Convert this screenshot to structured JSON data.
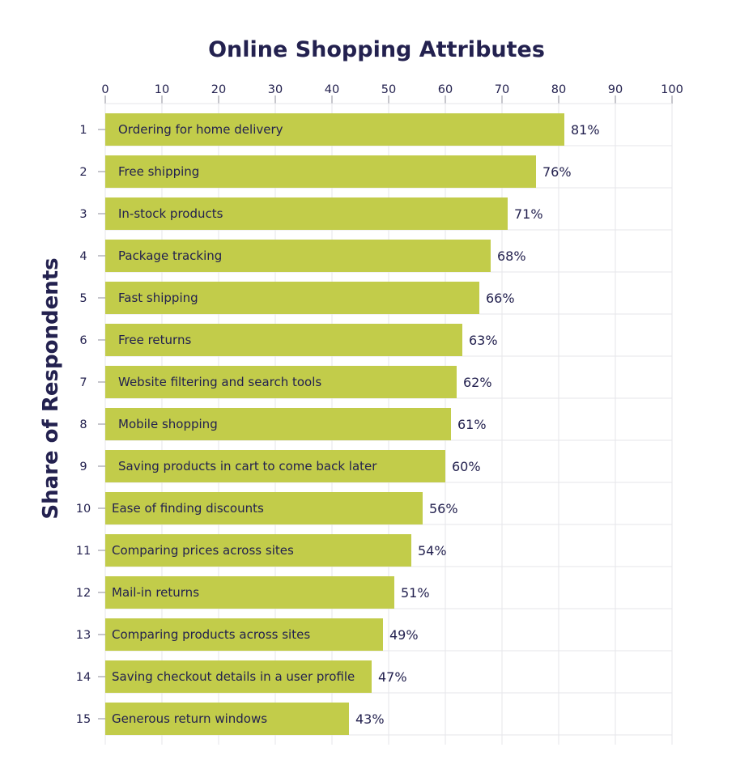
{
  "colors": {
    "bar": "#c2cc4a",
    "title": "#23214f",
    "text": "#23214f",
    "grid": "#e6e6ea",
    "tick": "#8c8c9a",
    "background": "#ffffff"
  },
  "chart_data": {
    "type": "bar",
    "orientation": "horizontal",
    "title": "Online Shopping Attributes",
    "ylabel": "Share of Respondents",
    "xlabel": "",
    "xlim": [
      0,
      100
    ],
    "x_ticks": [
      0,
      10,
      20,
      30,
      40,
      50,
      60,
      70,
      80,
      90,
      100
    ],
    "x_axis_position": "top",
    "grid": true,
    "value_suffix": "%",
    "ranks": [
      1,
      2,
      3,
      4,
      5,
      6,
      7,
      8,
      9,
      10,
      11,
      12,
      13,
      14,
      15
    ],
    "categories": [
      "Ordering for home delivery",
      "Free shipping",
      "In-stock products",
      "Package tracking",
      "Fast shipping",
      "Free returns",
      "Website filtering and search tools",
      "Mobile shopping",
      "Saving products in cart to come back later",
      "Ease of finding discounts",
      "Comparing prices across sites",
      "Mail-in returns",
      "Comparing products across sites",
      "Saving checkout details in a user profile",
      "Generous return windows"
    ],
    "values": [
      81,
      76,
      71,
      68,
      66,
      63,
      62,
      61,
      60,
      56,
      54,
      51,
      49,
      47,
      43
    ]
  }
}
